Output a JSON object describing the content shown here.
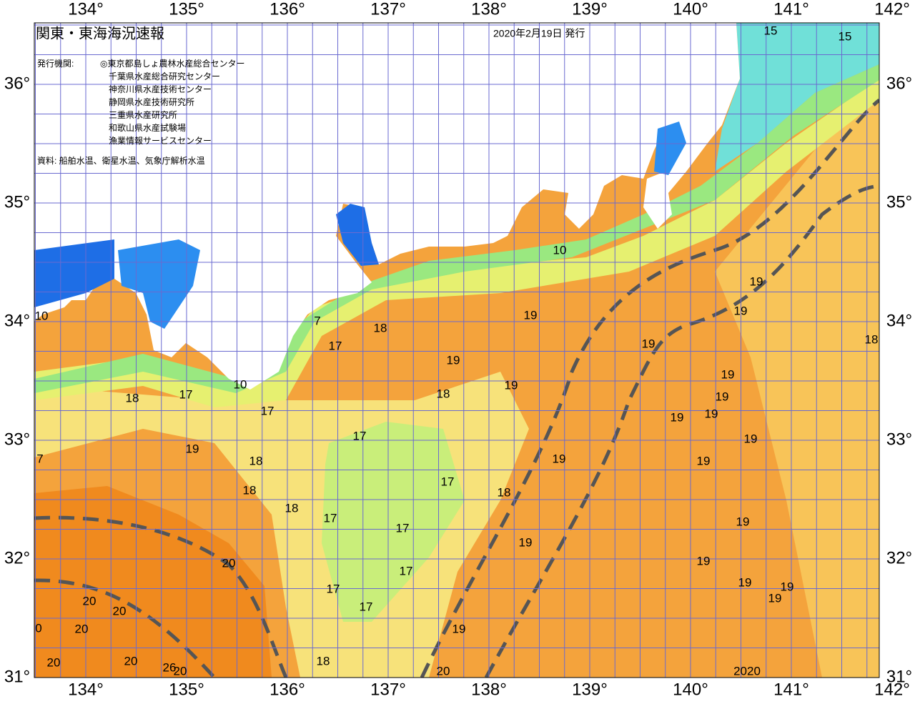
{
  "header": {
    "title": "関東・東海海況速報",
    "date": "2020年2月19日 発行",
    "agencies_label": "発行機関:",
    "agencies": [
      "◎東京都島しょ農林水産総合センター",
      "千葉県水産総合研究センター",
      "神奈川県水産技術センター",
      "静岡県水産技術研究所",
      "三重県水産研究所",
      "和歌山県水産試験場",
      "漁業情報サービスセンター"
    ],
    "source": "資料: 船舶水温、衛星水温、気象庁解析水温"
  },
  "axes": {
    "longitude": [
      "134°",
      "135°",
      "136°",
      "137°",
      "138°",
      "139°",
      "140°",
      "141°",
      "142°"
    ],
    "latitude": [
      "36°",
      "35°",
      "34°",
      "33°",
      "32°",
      "31°"
    ]
  },
  "contour_labels": [
    "15",
    "15",
    "10",
    "19",
    "19",
    "19",
    "18",
    "19",
    "7",
    "18",
    "17",
    "19",
    "19",
    "19",
    "18",
    "19",
    "18",
    "17",
    "10",
    "17",
    "19",
    "19",
    "17",
    "19",
    "19",
    "7",
    "18",
    "19",
    "19",
    "17",
    "18",
    "18",
    "18",
    "17",
    "19",
    "17",
    "19",
    "20",
    "19",
    "17",
    "19",
    "19",
    "19",
    "17",
    "20",
    "20",
    "17",
    "20",
    "0",
    "19",
    "20",
    "20",
    "18",
    "26",
    "20",
    "20",
    "2020",
    "10"
  ]
}
